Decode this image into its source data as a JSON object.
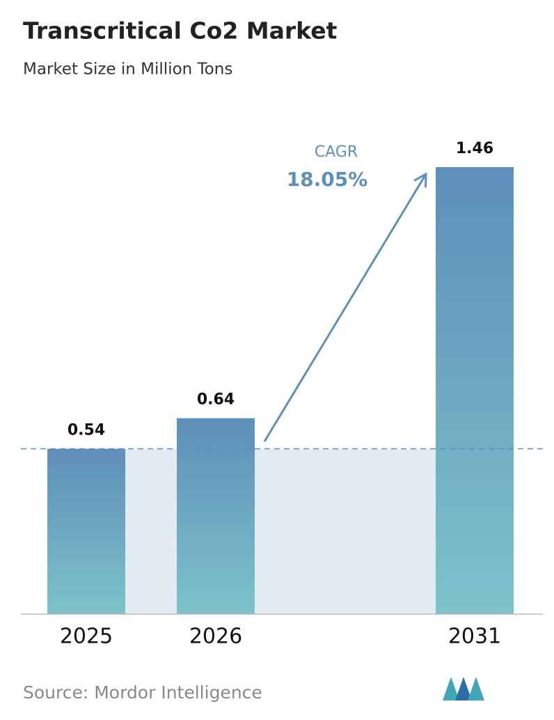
{
  "chart_data": {
    "type": "bar",
    "title": "Transcritical Co2 Market",
    "subtitle": "Market Size in Million Tons",
    "categories": [
      "2025",
      "2026",
      "2031"
    ],
    "values": [
      0.54,
      0.64,
      1.46
    ],
    "annotation": {
      "label": "CAGR",
      "value": "18.05%"
    },
    "source": "Source: Mordor Intelligence"
  }
}
